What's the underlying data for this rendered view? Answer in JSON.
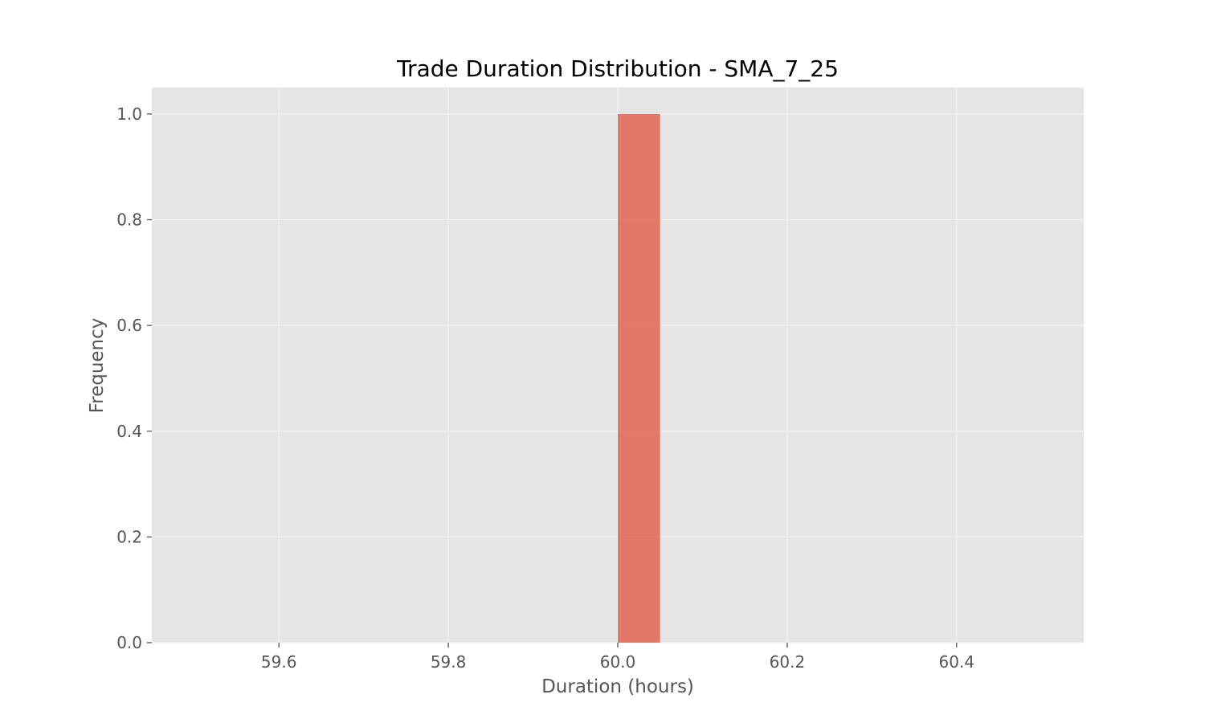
{
  "chart_data": {
    "type": "bar",
    "title": "Trade Duration Distribution - SMA_7_25",
    "xlabel": "Duration (hours)",
    "ylabel": "Frequency",
    "xlim": [
      59.45,
      60.55
    ],
    "ylim": [
      0.0,
      1.05
    ],
    "xticks": [
      "59.6",
      "59.8",
      "60.0",
      "60.2",
      "60.4"
    ],
    "xtick_values": [
      59.6,
      59.8,
      60.0,
      60.2,
      60.4
    ],
    "yticks": [
      "0.0",
      "0.2",
      "0.4",
      "0.6",
      "0.8",
      "1.0"
    ],
    "ytick_values": [
      0.0,
      0.2,
      0.4,
      0.6,
      0.8,
      1.0
    ],
    "bins": [
      {
        "x0": 60.0,
        "x1": 60.05,
        "value": 1.0
      }
    ],
    "grid": true,
    "legend": "none",
    "colors": {
      "bar": "#E24A33",
      "plot_background": "#E5E5E5",
      "grid": "#F2F2F2",
      "text": "#555555",
      "title": "#000000"
    }
  }
}
